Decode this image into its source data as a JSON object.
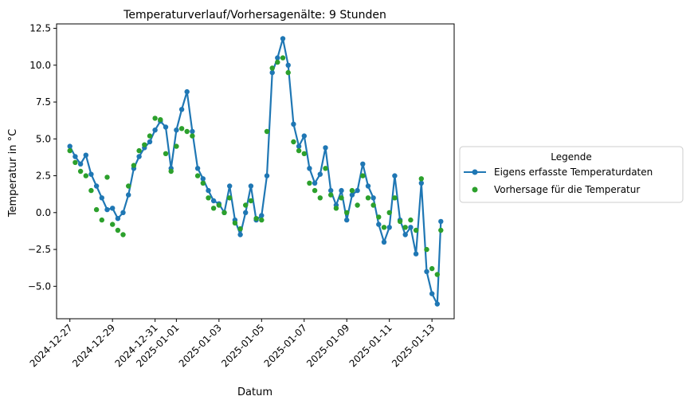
{
  "chart_data": {
    "type": "line",
    "title": "Temperaturverlauf/Vorhersagenälte: 9 Stunden",
    "xlabel": "Datum",
    "ylabel": "Temperatur in °C",
    "x_range": [
      "2024-12-26 09:00",
      "2025-01-14 01:00"
    ],
    "ylim": [
      -7.2,
      12.8
    ],
    "x_ticks": [
      "2024-12-27",
      "2024-12-29",
      "2024-12-31",
      "2025-01-01",
      "2025-01-03",
      "2025-01-05",
      "2025-01-07",
      "2025-01-09",
      "2025-01-11",
      "2025-01-13"
    ],
    "y_ticks": [
      "−5.0",
      "−2.5",
      "0.0",
      "2.5",
      "5.0",
      "7.5",
      "10.0",
      "12.5"
    ],
    "grid": false,
    "legend": {
      "title": "Legende",
      "placement": "outside-right",
      "entries": [
        "Eigens erfasste Temperaturdaten",
        "Vorhersage für die Temperatur"
      ]
    },
    "series": [
      {
        "name": "Eigens erfasste Temperaturdaten",
        "style": "line-with-markers",
        "color": "#1f77b4",
        "points": [
          [
            "2024-12-27 00:00",
            4.5
          ],
          [
            "2024-12-27 06:00",
            3.8
          ],
          [
            "2024-12-27 12:00",
            3.3
          ],
          [
            "2024-12-27 18:00",
            3.9
          ],
          [
            "2024-12-28 00:00",
            2.6
          ],
          [
            "2024-12-28 06:00",
            1.8
          ],
          [
            "2024-12-28 12:00",
            1.0
          ],
          [
            "2024-12-28 18:00",
            0.2
          ],
          [
            "2024-12-29 00:00",
            0.3
          ],
          [
            "2024-12-29 06:00",
            -0.4
          ],
          [
            "2024-12-29 12:00",
            0.0
          ],
          [
            "2024-12-29 18:00",
            1.2
          ],
          [
            "2024-12-30 00:00",
            3.0
          ],
          [
            "2024-12-30 06:00",
            3.8
          ],
          [
            "2024-12-30 12:00",
            4.4
          ],
          [
            "2024-12-30 18:00",
            4.8
          ],
          [
            "2024-12-31 00:00",
            5.6
          ],
          [
            "2024-12-31 06:00",
            6.2
          ],
          [
            "2024-12-31 12:00",
            5.8
          ],
          [
            "2024-12-31 18:00",
            3.0
          ],
          [
            "2025-01-01 00:00",
            5.6
          ],
          [
            "2025-01-01 06:00",
            7.0
          ],
          [
            "2025-01-01 12:00",
            8.2
          ],
          [
            "2025-01-01 18:00",
            5.5
          ],
          [
            "2025-01-02 00:00",
            3.0
          ],
          [
            "2025-01-02 06:00",
            2.3
          ],
          [
            "2025-01-02 12:00",
            1.5
          ],
          [
            "2025-01-02 18:00",
            0.8
          ],
          [
            "2025-01-03 00:00",
            0.6
          ],
          [
            "2025-01-03 06:00",
            0.0
          ],
          [
            "2025-01-03 12:00",
            1.8
          ],
          [
            "2025-01-03 18:00",
            -0.5
          ],
          [
            "2025-01-04 00:00",
            -1.5
          ],
          [
            "2025-01-04 06:00",
            0.0
          ],
          [
            "2025-01-04 12:00",
            1.8
          ],
          [
            "2025-01-04 18:00",
            -0.5
          ],
          [
            "2025-01-05 00:00",
            -0.2
          ],
          [
            "2025-01-05 06:00",
            2.5
          ],
          [
            "2025-01-05 12:00",
            9.5
          ],
          [
            "2025-01-05 18:00",
            10.5
          ],
          [
            "2025-01-06 00:00",
            11.8
          ],
          [
            "2025-01-06 06:00",
            10.0
          ],
          [
            "2025-01-06 12:00",
            6.0
          ],
          [
            "2025-01-06 18:00",
            4.5
          ],
          [
            "2025-01-07 00:00",
            5.2
          ],
          [
            "2025-01-07 06:00",
            3.0
          ],
          [
            "2025-01-07 12:00",
            2.0
          ],
          [
            "2025-01-07 18:00",
            2.6
          ],
          [
            "2025-01-08 00:00",
            4.4
          ],
          [
            "2025-01-08 06:00",
            1.5
          ],
          [
            "2025-01-08 12:00",
            0.5
          ],
          [
            "2025-01-08 18:00",
            1.5
          ],
          [
            "2025-01-09 00:00",
            -0.5
          ],
          [
            "2025-01-09 06:00",
            1.2
          ],
          [
            "2025-01-09 12:00",
            1.5
          ],
          [
            "2025-01-09 18:00",
            3.3
          ],
          [
            "2025-01-10 00:00",
            1.8
          ],
          [
            "2025-01-10 06:00",
            1.0
          ],
          [
            "2025-01-10 12:00",
            -0.8
          ],
          [
            "2025-01-10 18:00",
            -2.0
          ],
          [
            "2025-01-11 00:00",
            -1.0
          ],
          [
            "2025-01-11 06:00",
            2.5
          ],
          [
            "2025-01-11 12:00",
            -0.5
          ],
          [
            "2025-01-11 18:00",
            -1.5
          ],
          [
            "2025-01-12 00:00",
            -1.0
          ],
          [
            "2025-01-12 06:00",
            -2.8
          ],
          [
            "2025-01-12 12:00",
            2.0
          ],
          [
            "2025-01-12 18:00",
            -4.0
          ],
          [
            "2025-01-13 00:00",
            -5.5
          ],
          [
            "2025-01-13 06:00",
            -6.2
          ],
          [
            "2025-01-13 10:00",
            -0.6
          ]
        ]
      },
      {
        "name": "Vorhersage für die Temperatur",
        "style": "markers",
        "color": "#2ca02c",
        "points": [
          [
            "2024-12-27 00:00",
            4.2
          ],
          [
            "2024-12-27 06:00",
            3.4
          ],
          [
            "2024-12-27 12:00",
            2.8
          ],
          [
            "2024-12-27 18:00",
            2.5
          ],
          [
            "2024-12-28 00:00",
            1.5
          ],
          [
            "2024-12-28 06:00",
            0.2
          ],
          [
            "2024-12-28 12:00",
            -0.5
          ],
          [
            "2024-12-28 18:00",
            2.4
          ],
          [
            "2024-12-29 00:00",
            -0.8
          ],
          [
            "2024-12-29 06:00",
            -1.2
          ],
          [
            "2024-12-29 12:00",
            -1.5
          ],
          [
            "2024-12-29 18:00",
            1.8
          ],
          [
            "2024-12-30 00:00",
            3.2
          ],
          [
            "2024-12-30 06:00",
            4.2
          ],
          [
            "2024-12-30 12:00",
            4.6
          ],
          [
            "2024-12-30 18:00",
            5.2
          ],
          [
            "2024-12-31 00:00",
            6.4
          ],
          [
            "2024-12-31 06:00",
            6.3
          ],
          [
            "2024-12-31 12:00",
            4.0
          ],
          [
            "2024-12-31 18:00",
            2.8
          ],
          [
            "2025-01-01 00:00",
            4.5
          ],
          [
            "2025-01-01 06:00",
            5.7
          ],
          [
            "2025-01-01 12:00",
            5.5
          ],
          [
            "2025-01-01 18:00",
            5.2
          ],
          [
            "2025-01-02 00:00",
            2.5
          ],
          [
            "2025-01-02 06:00",
            2.0
          ],
          [
            "2025-01-02 12:00",
            1.0
          ],
          [
            "2025-01-02 18:00",
            0.3
          ],
          [
            "2025-01-03 00:00",
            0.5
          ],
          [
            "2025-01-03 06:00",
            0.0
          ],
          [
            "2025-01-03 12:00",
            1.0
          ],
          [
            "2025-01-03 18:00",
            -0.7
          ],
          [
            "2025-01-04 00:00",
            -1.1
          ],
          [
            "2025-01-04 06:00",
            0.5
          ],
          [
            "2025-01-04 12:00",
            0.8
          ],
          [
            "2025-01-04 18:00",
            -0.4
          ],
          [
            "2025-01-05 00:00",
            -0.5
          ],
          [
            "2025-01-05 06:00",
            5.5
          ],
          [
            "2025-01-05 12:00",
            9.8
          ],
          [
            "2025-01-05 18:00",
            10.2
          ],
          [
            "2025-01-06 00:00",
            10.5
          ],
          [
            "2025-01-06 06:00",
            9.5
          ],
          [
            "2025-01-06 12:00",
            4.8
          ],
          [
            "2025-01-06 18:00",
            4.2
          ],
          [
            "2025-01-07 00:00",
            4.0
          ],
          [
            "2025-01-07 06:00",
            2.0
          ],
          [
            "2025-01-07 12:00",
            1.5
          ],
          [
            "2025-01-07 18:00",
            1.0
          ],
          [
            "2025-01-08 00:00",
            3.0
          ],
          [
            "2025-01-08 06:00",
            1.2
          ],
          [
            "2025-01-08 12:00",
            0.3
          ],
          [
            "2025-01-08 18:00",
            1.0
          ],
          [
            "2025-01-09 00:00",
            0.0
          ],
          [
            "2025-01-09 06:00",
            1.5
          ],
          [
            "2025-01-09 12:00",
            0.5
          ],
          [
            "2025-01-09 18:00",
            2.5
          ],
          [
            "2025-01-10 00:00",
            1.0
          ],
          [
            "2025-01-10 06:00",
            0.5
          ],
          [
            "2025-01-10 12:00",
            -0.3
          ],
          [
            "2025-01-10 18:00",
            -1.0
          ],
          [
            "2025-01-11 00:00",
            0.0
          ],
          [
            "2025-01-11 06:00",
            1.0
          ],
          [
            "2025-01-11 12:00",
            -0.6
          ],
          [
            "2025-01-11 18:00",
            -1.0
          ],
          [
            "2025-01-12 00:00",
            -0.5
          ],
          [
            "2025-01-12 06:00",
            -1.2
          ],
          [
            "2025-01-12 12:00",
            2.3
          ],
          [
            "2025-01-12 18:00",
            -2.5
          ],
          [
            "2025-01-13 00:00",
            -3.8
          ],
          [
            "2025-01-13 06:00",
            -4.2
          ],
          [
            "2025-01-13 10:00",
            -1.2
          ]
        ]
      }
    ]
  }
}
